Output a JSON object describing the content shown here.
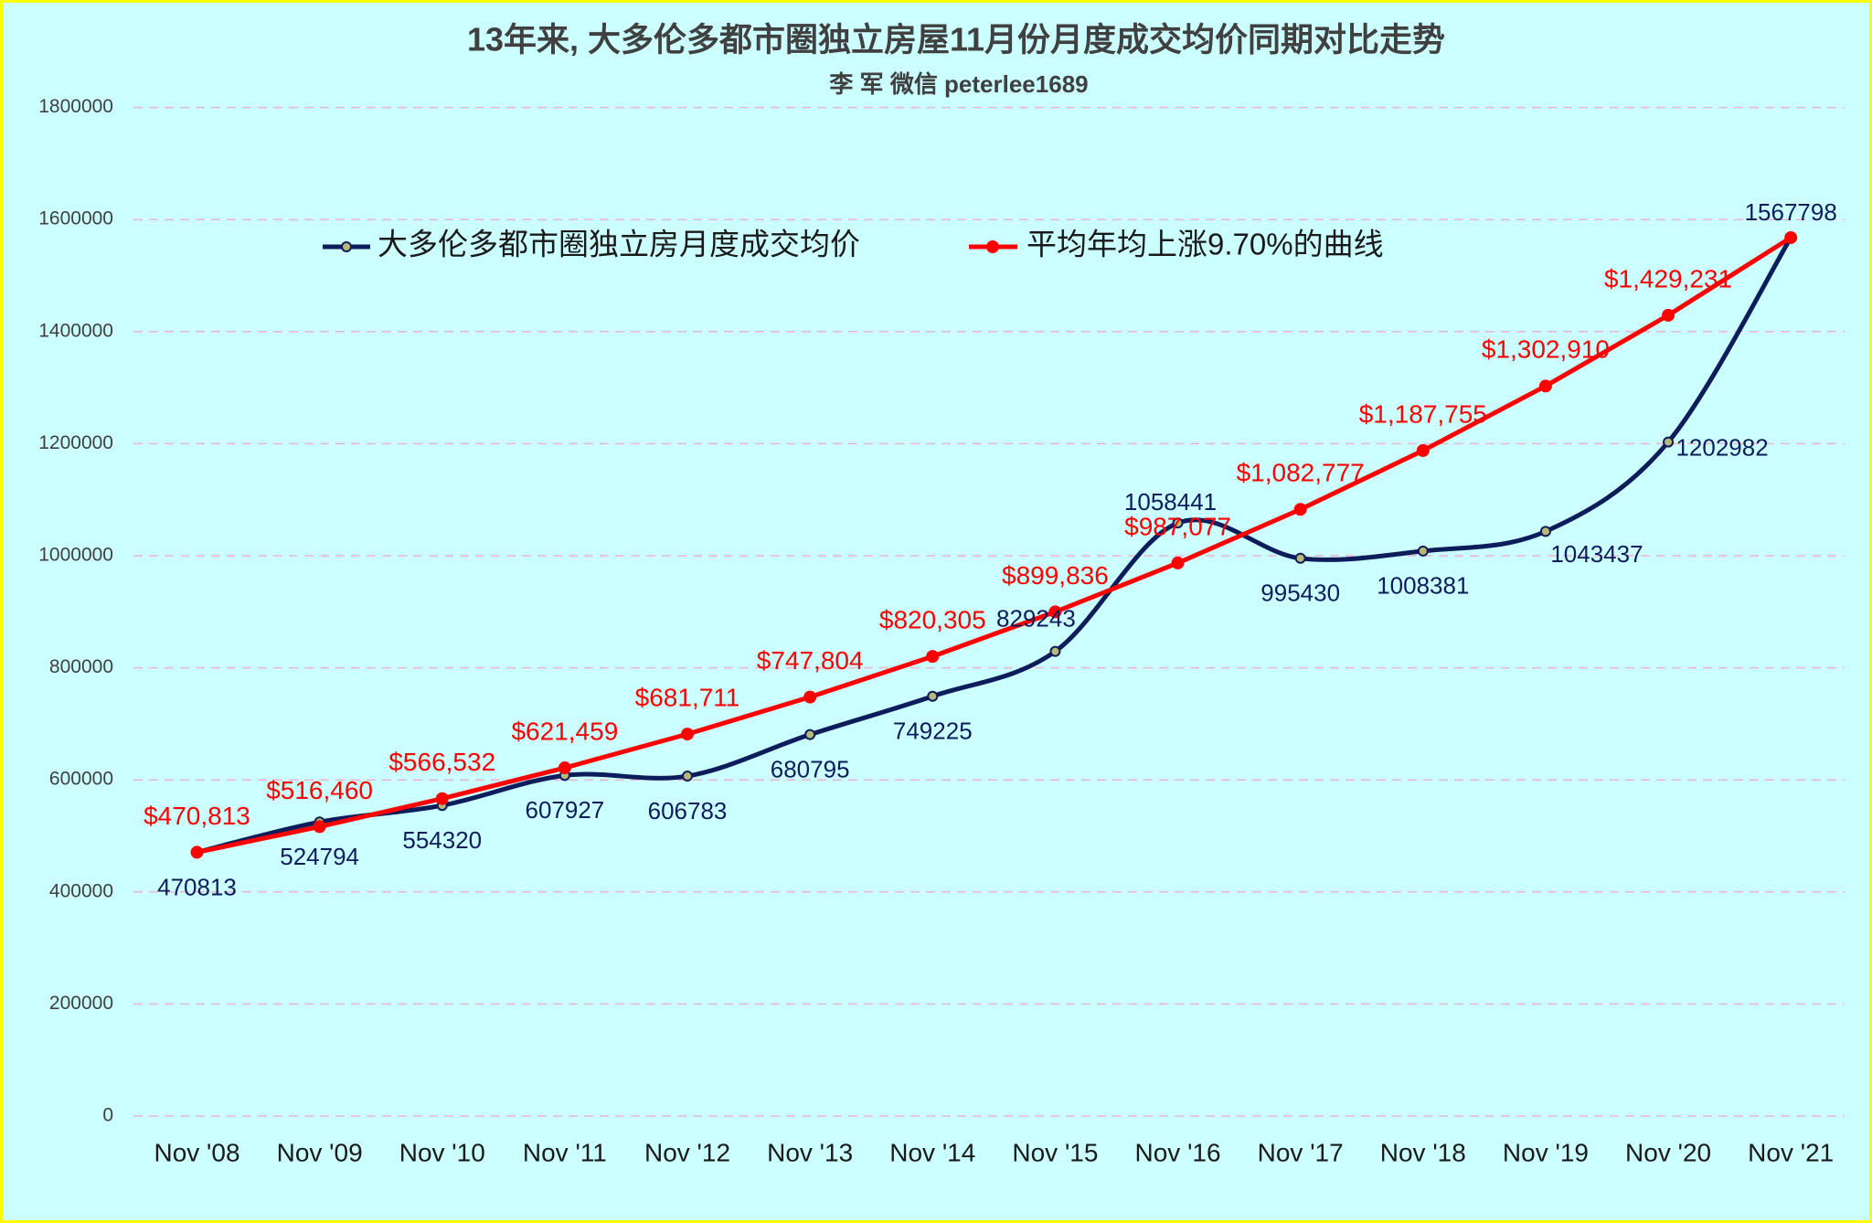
{
  "chart_data": {
    "type": "line",
    "title": "13年来, 大多伦多都市圈独立房屋11月份月度成交均价同期对比走势",
    "subtitle": "李 军 微信 peterlee1689",
    "xlabel": "",
    "ylabel": "",
    "categories": [
      "Nov '08",
      "Nov '09",
      "Nov '10",
      "Nov '11",
      "Nov '12",
      "Nov '13",
      "Nov '14",
      "Nov '15",
      "Nov '16",
      "Nov '17",
      "Nov '18",
      "Nov '19",
      "Nov '20",
      "Nov '21"
    ],
    "ylim": [
      0,
      1800000
    ],
    "yticks": [
      0,
      200000,
      400000,
      600000,
      800000,
      1000000,
      1200000,
      1400000,
      1600000,
      1800000
    ],
    "grid": true,
    "legend": "top-left",
    "series": [
      {
        "name": "大多伦多都市圈独立房月度成交均价",
        "color": "#0d1d5c",
        "marker_fill": "#b9b878",
        "smooth": true,
        "values": [
          470813,
          524794,
          554320,
          607927,
          606783,
          680795,
          749225,
          829243,
          1058441,
          995430,
          1008381,
          1043437,
          1202982,
          1567798
        ]
      },
      {
        "name": "平均年均上涨9.70%的曲线",
        "color": "#ff0000",
        "marker_fill": "#ff0000",
        "smooth": false,
        "values": [
          470813,
          516460,
          566532,
          621459,
          681711,
          747804,
          820305,
          899836,
          987077,
          1082777,
          1187755,
          1302910,
          1429231,
          1567798
        ],
        "labels": [
          "$470,813",
          "$516,460",
          "$566,532",
          "$621,459",
          "$681,711",
          "$747,804",
          "$820,305",
          "$899,836",
          "$987,077",
          "$1,082,777",
          "$1,187,755",
          "$1,302,910",
          "$1,429,231",
          null
        ]
      }
    ]
  },
  "colors": {
    "background": "#ccffff",
    "border": "#ffff00",
    "gridline": "#eab6cc",
    "navy_label": "#0d1d5c",
    "red_label": "#ff0000"
  }
}
